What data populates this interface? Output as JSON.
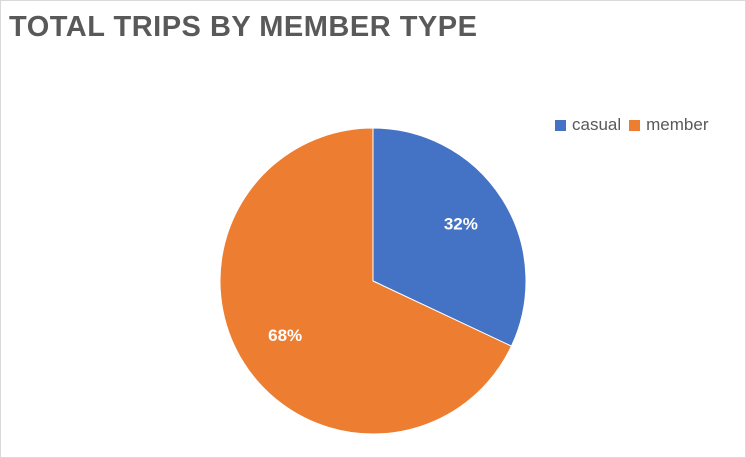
{
  "chart_data": {
    "type": "pie",
    "title": "TOTAL TRIPS BY MEMBER TYPE",
    "categories": [
      "casual",
      "member"
    ],
    "values": [
      32,
      68
    ],
    "data_labels": [
      "32%",
      "68%"
    ],
    "colors": [
      "#4472c4",
      "#ed7d31"
    ],
    "legend_position": "top-right"
  }
}
